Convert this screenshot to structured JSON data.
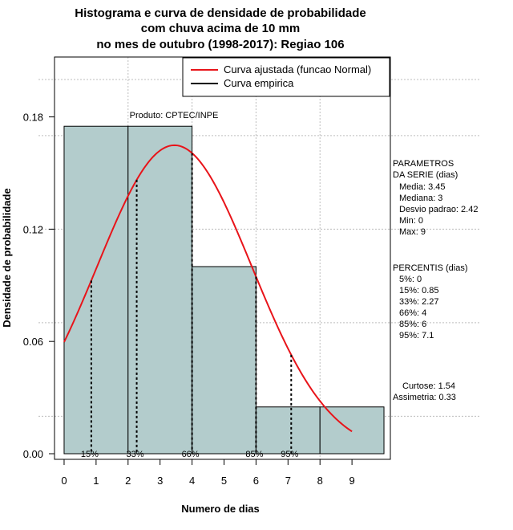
{
  "chart_data": {
    "type": "bar",
    "title_lines": [
      "Histograma e curva de densidade de probabilidade",
      "com chuva acima de 10 mm",
      "no mes de outubro (1998-2017): Regiao 106"
    ],
    "xlabel": "Numero de dias",
    "ylabel": "Densidade de probabilidade",
    "xlim": [
      -0.3,
      10.2
    ],
    "ylim": [
      -0.003,
      0.212
    ],
    "x_ticks": [
      0,
      1,
      2,
      3,
      4,
      5,
      6,
      7,
      8,
      9
    ],
    "x_tick_labels": [
      "0",
      "1",
      "2",
      "3",
      "4",
      "5",
      "6",
      "7",
      "8",
      "9"
    ],
    "y_ticks": [
      0.0,
      0.06,
      0.12,
      0.18
    ],
    "y_tick_labels": [
      "0.00",
      "0.06",
      "0.12",
      "0.18"
    ],
    "grid": true,
    "colors": {
      "bars": "#b3cccc",
      "normal_curve": "#e8141a",
      "empirical_curve": "#000000",
      "grid": "#bdbdbd"
    },
    "bins": [
      {
        "x0": 0,
        "x1": 2,
        "value": 0.175
      },
      {
        "x0": 2,
        "x1": 4,
        "value": 0.175
      },
      {
        "x0": 4,
        "x1": 6,
        "value": 0.1
      },
      {
        "x0": 6,
        "x1": 8,
        "value": 0.025
      },
      {
        "x0": 8,
        "x1": 10,
        "value": 0.025
      }
    ],
    "normal_curve": {
      "mean": 3.45,
      "sd": 2.42,
      "x_range": [
        0,
        9
      ]
    },
    "legend": {
      "position": "top-right",
      "entries": [
        "Curva ajustada (funcao Normal)",
        "Curva empirica"
      ]
    },
    "product_label": "Produto: CPTEC/INPE",
    "percentile_lines": [
      {
        "label": "15%",
        "x": 0.85
      },
      {
        "label": "33%",
        "x": 2.27
      },
      {
        "label": "66%",
        "x": 4
      },
      {
        "label": "85%",
        "x": 6
      },
      {
        "label": "95%",
        "x": 7.1
      }
    ]
  },
  "side_panel": {
    "parametros_title": [
      "PARAMETROS",
      "DA SERIE (dias)"
    ],
    "parametros": [
      "Media: 3.45",
      "Mediana: 3",
      "Desvio padrao: 2.42",
      "Min: 0",
      "Max: 9"
    ],
    "percentis_title": "PERCENTIS (dias)",
    "percentis": [
      "5%: 0",
      "15%: 0.85",
      "33%: 2.27",
      "66%: 4",
      "85%: 6",
      "95%: 7.1"
    ],
    "curtose": "Curtose: 1.54",
    "assimetria": "Assimetria: 0.33"
  }
}
